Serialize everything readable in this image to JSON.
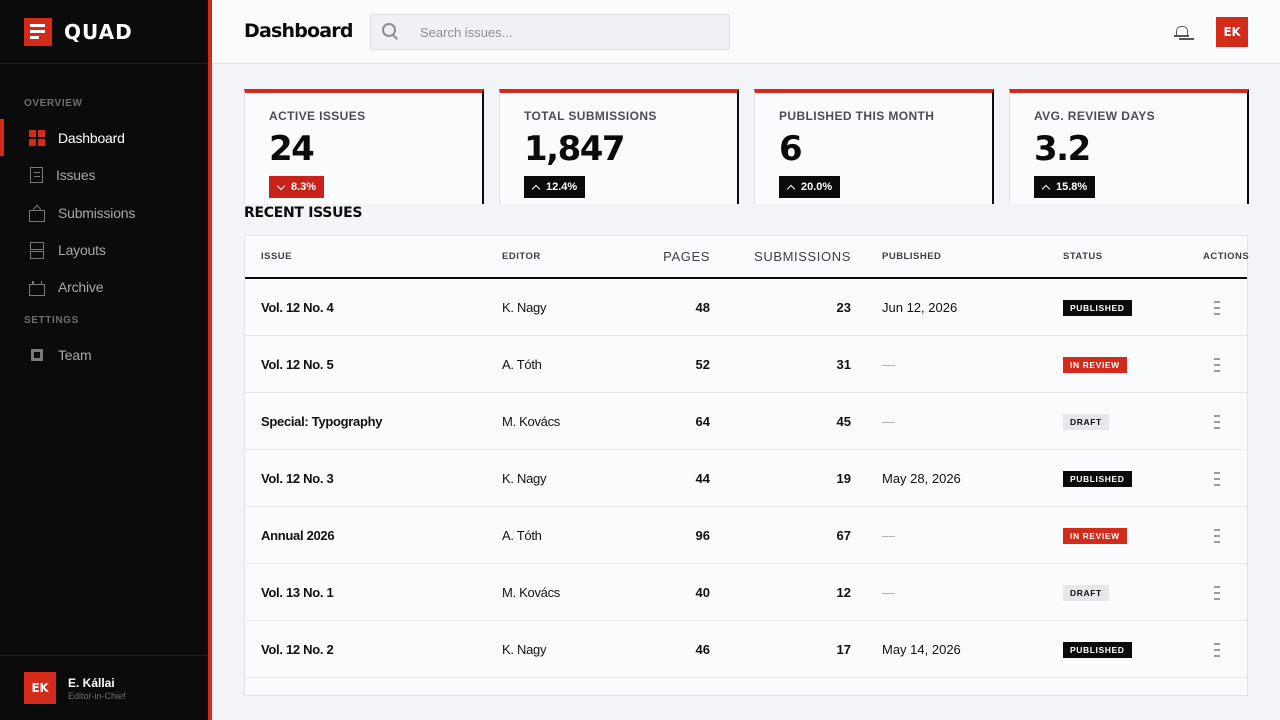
{
  "app": {
    "brand_name": "QUAD",
    "page_title": "Dashboard"
  },
  "search": {
    "placeholder": "Search issues..."
  },
  "user": {
    "initials": "EK",
    "name": "E. Kállai",
    "role": "Editor-in-Chief"
  },
  "sidebar": {
    "sections": {
      "overview": "OVERVIEW",
      "settings": "SETTINGS"
    },
    "items": [
      {
        "label": "Dashboard",
        "icon": "grid-icon",
        "active": true
      },
      {
        "label": "Issues",
        "icon": "document-icon",
        "active": false
      },
      {
        "label": "Submissions",
        "icon": "inbox-icon",
        "active": false
      },
      {
        "label": "Layouts",
        "icon": "layout-icon",
        "active": false
      },
      {
        "label": "Archive",
        "icon": "archive-icon",
        "active": false
      },
      {
        "label": "Team",
        "icon": "team-icon",
        "active": false
      }
    ]
  },
  "stats": [
    {
      "label": "ACTIVE ISSUES",
      "value": "24",
      "delta": "8.3%",
      "direction": "down"
    },
    {
      "label": "TOTAL SUBMISSIONS",
      "value": "1,847",
      "delta": "12.4%",
      "direction": "up"
    },
    {
      "label": "PUBLISHED THIS MONTH",
      "value": "6",
      "delta": "20.0%",
      "direction": "up"
    },
    {
      "label": "AVG. REVIEW DAYS",
      "value": "3.2",
      "delta": "15.8%",
      "direction": "up"
    }
  ],
  "recent_issues": {
    "title": "RECENT ISSUES",
    "columns": {
      "issue": "ISSUE",
      "editor": "EDITOR",
      "pages": "PAGES",
      "submissions": "SUBMISSIONS",
      "published": "PUBLISHED",
      "status": "STATUS",
      "actions": "ACTIONS"
    },
    "rows": [
      {
        "issue": "Vol. 12 No. 4",
        "editor": "K. Nagy",
        "pages": "48",
        "submissions": "23",
        "published": "Jun 12, 2026",
        "status": "PUBLISHED"
      },
      {
        "issue": "Vol. 12 No. 5",
        "editor": "A. Tóth",
        "pages": "52",
        "submissions": "31",
        "published": "—",
        "status": "IN REVIEW"
      },
      {
        "issue": "Special: Typography",
        "editor": "M. Kovács",
        "pages": "64",
        "submissions": "45",
        "published": "—",
        "status": "DRAFT"
      },
      {
        "issue": "Vol. 12 No. 3",
        "editor": "K. Nagy",
        "pages": "44",
        "submissions": "19",
        "published": "May 28, 2026",
        "status": "PUBLISHED"
      },
      {
        "issue": "Annual 2026",
        "editor": "A. Tóth",
        "pages": "96",
        "submissions": "67",
        "published": "—",
        "status": "IN REVIEW"
      },
      {
        "issue": "Vol. 13 No. 1",
        "editor": "M. Kovács",
        "pages": "40",
        "submissions": "12",
        "published": "—",
        "status": "DRAFT"
      },
      {
        "issue": "Vol. 12 No. 2",
        "editor": "K. Nagy",
        "pages": "46",
        "submissions": "17",
        "published": "May 14, 2026",
        "status": "PUBLISHED"
      }
    ]
  },
  "colors": {
    "accent": "#d42a1a",
    "sidebar_bg": "#0b0b0b",
    "page_bg": "#f3f4f7"
  }
}
